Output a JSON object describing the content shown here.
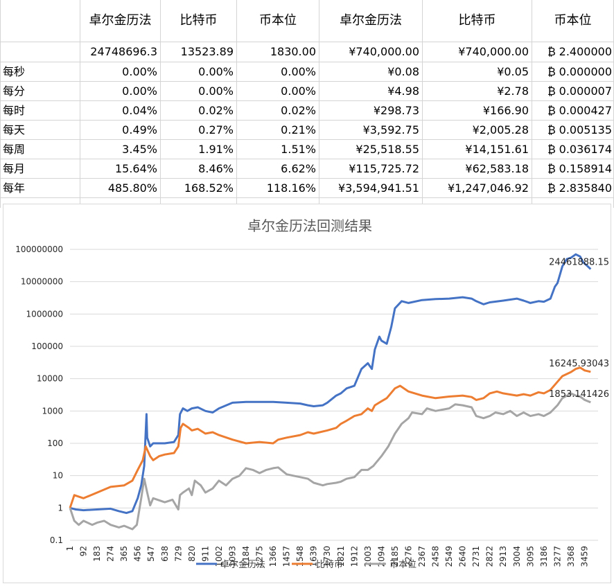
{
  "table": {
    "headers": [
      "",
      "卓尔金历法",
      "比特币",
      "币本位",
      "卓尔金历法",
      "比特币",
      "币本位"
    ],
    "initial": [
      "",
      "24748696.3",
      "13523.89",
      "1830.00",
      "¥740,000.00",
      "¥740,000.00",
      "2.400000"
    ],
    "rows": [
      [
        "每秒",
        "0.00%",
        "0.00%",
        "0.00%",
        "¥0.08",
        "¥0.05",
        "0.000000"
      ],
      [
        "每分",
        "0.00%",
        "0.00%",
        "0.00%",
        "¥4.98",
        "¥2.78",
        "0.000007"
      ],
      [
        "每时",
        "0.04%",
        "0.02%",
        "0.02%",
        "¥298.73",
        "¥166.90",
        "0.000427"
      ],
      [
        "每天",
        "0.49%",
        "0.27%",
        "0.21%",
        "¥3,592.75",
        "¥2,005.28",
        "0.005135"
      ],
      [
        "每周",
        "3.45%",
        "1.91%",
        "1.51%",
        "¥25,518.55",
        "¥14,151.61",
        "0.036174"
      ],
      [
        "每月",
        "15.64%",
        "8.46%",
        "6.62%",
        "¥115,725.72",
        "¥62,583.18",
        "0.158914"
      ],
      [
        "每年",
        "485.80%",
        "168.52%",
        "118.16%",
        "¥3,594,941.51",
        "¥1,247,046.92",
        "2.835840"
      ]
    ],
    "btc_symbol": "₿"
  },
  "chart_data": {
    "type": "line",
    "title": "卓尔金历法回测结果",
    "y_scale": "log",
    "ylim": [
      0.1,
      100000000
    ],
    "y_ticks": [
      "0.1",
      "1",
      "10",
      "100",
      "1000",
      "10000",
      "100000",
      "1000000",
      "10000000",
      "100000000"
    ],
    "x_ticks": [
      "1",
      "92",
      "183",
      "274",
      "365",
      "456",
      "547",
      "638",
      "729",
      "820",
      "911",
      "1002",
      "1093",
      "1184",
      "1275",
      "1366",
      "1457",
      "1548",
      "1639",
      "1730",
      "1821",
      "1912",
      "2003",
      "2094",
      "2185",
      "2276",
      "2367",
      "2458",
      "2549",
      "2640",
      "2731",
      "2822",
      "2913",
      "3004",
      "3095",
      "3186",
      "3277",
      "3368",
      "3459"
    ],
    "xlim": [
      1,
      3550
    ],
    "legend_position": "bottom",
    "series": [
      {
        "name": "卓尔金历法",
        "color": "#4472C4",
        "end_label": "24461888.15",
        "points": [
          [
            1,
            1
          ],
          [
            40,
            0.9
          ],
          [
            92,
            0.85
          ],
          [
            183,
            0.9
          ],
          [
            274,
            0.95
          ],
          [
            330,
            0.8
          ],
          [
            380,
            0.7
          ],
          [
            420,
            0.8
          ],
          [
            456,
            2
          ],
          [
            480,
            5
          ],
          [
            500,
            20
          ],
          [
            515,
            800
          ],
          [
            520,
            150
          ],
          [
            540,
            80
          ],
          [
            560,
            100
          ],
          [
            638,
            100
          ],
          [
            700,
            110
          ],
          [
            729,
            180
          ],
          [
            740,
            800
          ],
          [
            760,
            1200
          ],
          [
            790,
            1000
          ],
          [
            820,
            1200
          ],
          [
            860,
            1300
          ],
          [
            911,
            1000
          ],
          [
            960,
            900
          ],
          [
            1002,
            1200
          ],
          [
            1093,
            1800
          ],
          [
            1184,
            1900
          ],
          [
            1275,
            1900
          ],
          [
            1366,
            1900
          ],
          [
            1457,
            1800
          ],
          [
            1548,
            1700
          ],
          [
            1600,
            1500
          ],
          [
            1639,
            1400
          ],
          [
            1700,
            1500
          ],
          [
            1730,
            1800
          ],
          [
            1790,
            3000
          ],
          [
            1821,
            3500
          ],
          [
            1860,
            5000
          ],
          [
            1912,
            6000
          ],
          [
            1960,
            20000
          ],
          [
            2003,
            30000
          ],
          [
            2030,
            20000
          ],
          [
            2050,
            80000
          ],
          [
            2080,
            200000
          ],
          [
            2094,
            150000
          ],
          [
            2130,
            120000
          ],
          [
            2160,
            400000
          ],
          [
            2185,
            1500000
          ],
          [
            2230,
            2500000
          ],
          [
            2276,
            2200000
          ],
          [
            2367,
            2700000
          ],
          [
            2458,
            2900000
          ],
          [
            2549,
            3000000
          ],
          [
            2640,
            3300000
          ],
          [
            2700,
            3000000
          ],
          [
            2731,
            2500000
          ],
          [
            2780,
            2000000
          ],
          [
            2822,
            2300000
          ],
          [
            2913,
            2600000
          ],
          [
            3004,
            3000000
          ],
          [
            3050,
            2600000
          ],
          [
            3095,
            2200000
          ],
          [
            3150,
            2500000
          ],
          [
            3186,
            2400000
          ],
          [
            3230,
            3000000
          ],
          [
            3260,
            7000000
          ],
          [
            3277,
            9000000
          ],
          [
            3310,
            30000000
          ],
          [
            3340,
            50000000
          ],
          [
            3368,
            55000000
          ],
          [
            3400,
            70000000
          ],
          [
            3430,
            60000000
          ],
          [
            3450,
            40000000
          ],
          [
            3480,
            30000000
          ],
          [
            3500,
            24461888
          ]
        ]
      },
      {
        "name": "比特币",
        "color": "#ED7D31",
        "end_label": "16245.93043",
        "points": [
          [
            1,
            1
          ],
          [
            30,
            2.5
          ],
          [
            92,
            2
          ],
          [
            183,
            3
          ],
          [
            274,
            4.5
          ],
          [
            365,
            5
          ],
          [
            420,
            7
          ],
          [
            456,
            15
          ],
          [
            490,
            30
          ],
          [
            510,
            80
          ],
          [
            540,
            40
          ],
          [
            560,
            30
          ],
          [
            600,
            40
          ],
          [
            638,
            45
          ],
          [
            700,
            50
          ],
          [
            729,
            80
          ],
          [
            745,
            300
          ],
          [
            760,
            400
          ],
          [
            800,
            300
          ],
          [
            820,
            250
          ],
          [
            860,
            280
          ],
          [
            911,
            200
          ],
          [
            960,
            220
          ],
          [
            1002,
            180
          ],
          [
            1093,
            130
          ],
          [
            1184,
            100
          ],
          [
            1275,
            110
          ],
          [
            1366,
            100
          ],
          [
            1400,
            130
          ],
          [
            1457,
            150
          ],
          [
            1548,
            180
          ],
          [
            1600,
            220
          ],
          [
            1639,
            200
          ],
          [
            1730,
            250
          ],
          [
            1790,
            300
          ],
          [
            1821,
            400
          ],
          [
            1860,
            500
          ],
          [
            1912,
            700
          ],
          [
            1960,
            800
          ],
          [
            2003,
            1200
          ],
          [
            2030,
            1000
          ],
          [
            2050,
            1500
          ],
          [
            2094,
            2000
          ],
          [
            2130,
            2500
          ],
          [
            2185,
            5000
          ],
          [
            2220,
            6000
          ],
          [
            2260,
            4500
          ],
          [
            2276,
            4000
          ],
          [
            2367,
            3000
          ],
          [
            2458,
            2500
          ],
          [
            2549,
            2800
          ],
          [
            2640,
            3000
          ],
          [
            2700,
            2700
          ],
          [
            2731,
            2200
          ],
          [
            2780,
            2500
          ],
          [
            2822,
            3500
          ],
          [
            2870,
            4000
          ],
          [
            2913,
            3500
          ],
          [
            3004,
            3000
          ],
          [
            3050,
            3300
          ],
          [
            3095,
            3000
          ],
          [
            3150,
            3800
          ],
          [
            3186,
            3500
          ],
          [
            3230,
            4500
          ],
          [
            3277,
            8000
          ],
          [
            3310,
            12000
          ],
          [
            3368,
            16000
          ],
          [
            3400,
            20000
          ],
          [
            3430,
            22000
          ],
          [
            3460,
            18000
          ],
          [
            3500,
            16245.93
          ]
        ]
      },
      {
        "name": "币本位",
        "color": "#A5A5A5",
        "end_label": "1853.141426",
        "points": [
          [
            1,
            1
          ],
          [
            30,
            0.4
          ],
          [
            60,
            0.3
          ],
          [
            92,
            0.4
          ],
          [
            150,
            0.3
          ],
          [
            183,
            0.35
          ],
          [
            230,
            0.4
          ],
          [
            274,
            0.3
          ],
          [
            330,
            0.25
          ],
          [
            365,
            0.28
          ],
          [
            420,
            0.22
          ],
          [
            450,
            0.3
          ],
          [
            480,
            2
          ],
          [
            500,
            8
          ],
          [
            520,
            3
          ],
          [
            540,
            1.2
          ],
          [
            560,
            2
          ],
          [
            638,
            1.5
          ],
          [
            690,
            1.8
          ],
          [
            729,
            0.9
          ],
          [
            740,
            2.5
          ],
          [
            760,
            3
          ],
          [
            800,
            4
          ],
          [
            820,
            2.5
          ],
          [
            840,
            7
          ],
          [
            880,
            5
          ],
          [
            911,
            3
          ],
          [
            960,
            4
          ],
          [
            1002,
            7
          ],
          [
            1050,
            5
          ],
          [
            1093,
            8
          ],
          [
            1140,
            10
          ],
          [
            1184,
            17
          ],
          [
            1230,
            15
          ],
          [
            1275,
            12
          ],
          [
            1320,
            15
          ],
          [
            1366,
            17
          ],
          [
            1400,
            18
          ],
          [
            1457,
            11
          ],
          [
            1500,
            10
          ],
          [
            1548,
            9
          ],
          [
            1600,
            8
          ],
          [
            1639,
            6
          ],
          [
            1700,
            5
          ],
          [
            1730,
            5.5
          ],
          [
            1790,
            6
          ],
          [
            1821,
            6.5
          ],
          [
            1860,
            8
          ],
          [
            1912,
            9
          ],
          [
            1960,
            15
          ],
          [
            2003,
            15
          ],
          [
            2040,
            20
          ],
          [
            2094,
            40
          ],
          [
            2140,
            80
          ],
          [
            2185,
            200
          ],
          [
            2230,
            400
          ],
          [
            2276,
            600
          ],
          [
            2300,
            900
          ],
          [
            2367,
            800
          ],
          [
            2400,
            1200
          ],
          [
            2458,
            1000
          ],
          [
            2549,
            1200
          ],
          [
            2590,
            1600
          ],
          [
            2640,
            1500
          ],
          [
            2700,
            1300
          ],
          [
            2731,
            700
          ],
          [
            2780,
            600
          ],
          [
            2822,
            700
          ],
          [
            2860,
            900
          ],
          [
            2913,
            800
          ],
          [
            2960,
            1000
          ],
          [
            3004,
            700
          ],
          [
            3050,
            900
          ],
          [
            3095,
            700
          ],
          [
            3150,
            800
          ],
          [
            3186,
            700
          ],
          [
            3230,
            900
          ],
          [
            3277,
            1500
          ],
          [
            3310,
            2500
          ],
          [
            3368,
            3500
          ],
          [
            3400,
            3000
          ],
          [
            3430,
            2800
          ],
          [
            3460,
            2200
          ],
          [
            3500,
            1853.14
          ]
        ]
      }
    ]
  }
}
